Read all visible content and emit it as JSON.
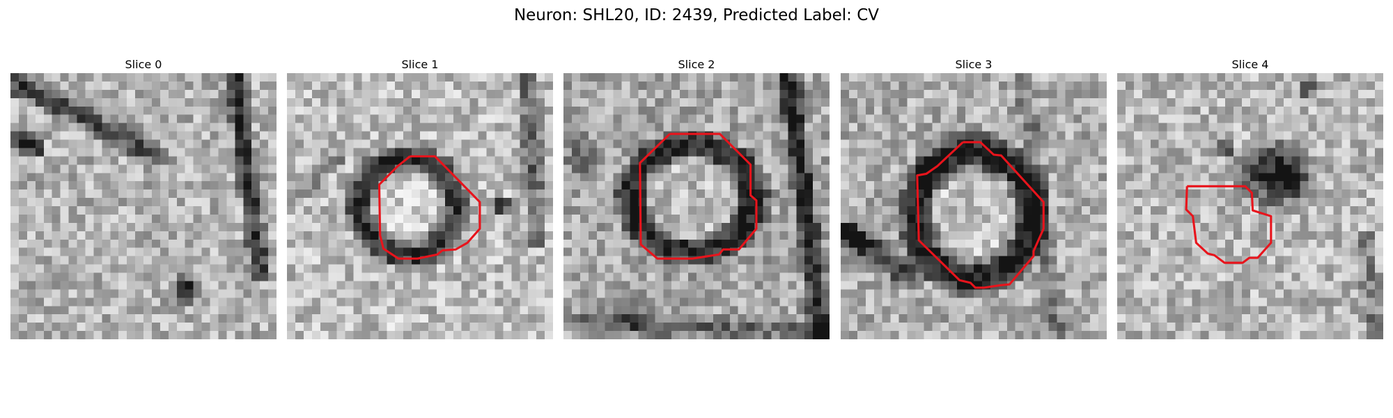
{
  "title": "Neuron: SHL20, ID: 2439, Predicted Label: CV",
  "colors": {
    "background": "#ffffff",
    "contour": "#e8141c",
    "grayscale_dark": "#141414",
    "grayscale_light": "#f2f2f2"
  },
  "slices": [
    {
      "label": "Slice 0",
      "index": 0,
      "has_contour": false
    },
    {
      "label": "Slice 1",
      "index": 1,
      "has_contour": true
    },
    {
      "label": "Slice 2",
      "index": 2,
      "has_contour": true
    },
    {
      "label": "Slice 3",
      "index": 3,
      "has_contour": true
    },
    {
      "label": "Slice 4",
      "index": 4,
      "has_contour": true
    }
  ]
}
